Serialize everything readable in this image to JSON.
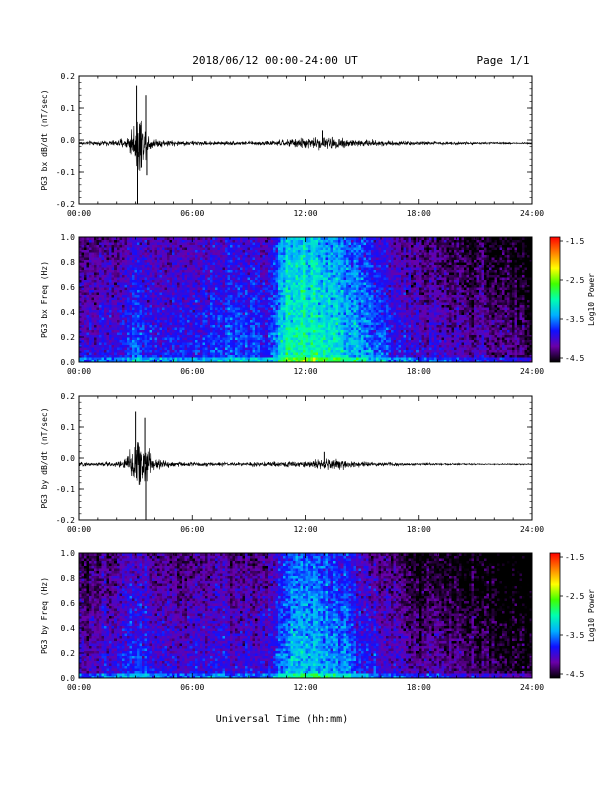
{
  "header": {
    "title": "2018/06/12  00:00-24:00 UT",
    "page": "Page 1/1"
  },
  "x_axis_title": "Universal Time (hh:mm)",
  "colors": {
    "trace": "#000000",
    "frame": "#000000",
    "background": "#ffffff"
  },
  "chart_data": [
    {
      "type": "line",
      "panel": "bx-timeseries",
      "ylabel": "PG3 bx dB/dt (nT/sec)",
      "ylim": [
        -0.2,
        0.2
      ],
      "yticks": [
        "0.2",
        "0.1",
        "0.0",
        "-0.1",
        "-0.2"
      ],
      "xlim": [
        0,
        24
      ],
      "xticks": [
        "00:00",
        "06:00",
        "12:00",
        "18:00",
        "24:00"
      ],
      "baseline": -0.01,
      "envelope": {
        "x_hours": [
          0,
          1,
          2,
          2.5,
          2.7,
          3.0,
          3.2,
          3.4,
          3.6,
          4.0,
          5.0,
          7.0,
          9.0,
          10.5,
          11.5,
          12.5,
          13.5,
          14.5,
          16.0,
          18.0,
          20.0,
          22.0,
          24.0
        ],
        "amplitude": [
          0.01,
          0.012,
          0.015,
          0.03,
          0.06,
          0.12,
          0.19,
          0.09,
          0.06,
          0.025,
          0.015,
          0.01,
          0.01,
          0.015,
          0.025,
          0.03,
          0.035,
          0.025,
          0.015,
          0.01,
          0.008,
          0.005,
          0.005
        ]
      },
      "notable_peaks": [
        {
          "x_hour": 3.05,
          "y": 0.17
        },
        {
          "x_hour": 3.1,
          "y": -0.2
        },
        {
          "x_hour": 3.55,
          "y": 0.14
        },
        {
          "x_hour": 3.6,
          "y": -0.11
        },
        {
          "x_hour": 12.9,
          "y": 0.03
        }
      ]
    },
    {
      "type": "heatmap",
      "panel": "bx-spectrogram",
      "ylabel": "PG3 bx Freq (Hz)",
      "ylim": [
        0.0,
        1.0
      ],
      "yticks": [
        "1.0",
        "0.8",
        "0.6",
        "0.4",
        "0.2",
        "0.0"
      ],
      "xlim": [
        0,
        24
      ],
      "xticks": [
        "00:00",
        "06:00",
        "12:00",
        "18:00",
        "24:00"
      ],
      "colorbar": {
        "label": "Log10 Power",
        "range": [
          -4.5,
          -1.5
        ],
        "ticks": [
          "-1.5",
          "-2.5",
          "-3.5",
          "-4.5"
        ],
        "colors": [
          "#000000",
          "#6a00a8",
          "#1010ff",
          "#00b0ff",
          "#00ffb0",
          "#40ff00",
          "#ffff00",
          "#ff8000",
          "#ff0000"
        ]
      },
      "activity_profile": {
        "x_hours": [
          0,
          2,
          2.8,
          3.3,
          4,
          6,
          8,
          10,
          10.5,
          11,
          12,
          13,
          14,
          15,
          16,
          17,
          18,
          20,
          22,
          24
        ],
        "mean_log10_power": [
          -3.9,
          -3.8,
          -3.6,
          -3.6,
          -3.8,
          -3.7,
          -3.6,
          -3.7,
          -3.3,
          -3.0,
          -2.9,
          -3.0,
          -3.2,
          -3.4,
          -3.6,
          -3.8,
          -3.9,
          -4.0,
          -4.1,
          -4.3
        ]
      }
    },
    {
      "type": "line",
      "panel": "by-timeseries",
      "ylabel": "PG3 by dB/dt (nT/sec)",
      "ylim": [
        -0.2,
        0.2
      ],
      "yticks": [
        "0.2",
        "0.1",
        "0.0",
        "-0.1",
        "-0.2"
      ],
      "xlim": [
        0,
        24
      ],
      "xticks": [
        "00:00",
        "06:00",
        "12:00",
        "18:00",
        "24:00"
      ],
      "baseline": -0.02,
      "envelope": {
        "x_hours": [
          0,
          1,
          2,
          2.5,
          2.7,
          3.0,
          3.2,
          3.4,
          3.6,
          4.0,
          5.0,
          7.0,
          9.0,
          10.5,
          11.5,
          12.5,
          13.5,
          14.5,
          16.0,
          18.0,
          20.0,
          22.0,
          24.0
        ],
        "amplitude": [
          0.01,
          0.012,
          0.015,
          0.04,
          0.08,
          0.14,
          0.16,
          0.13,
          0.11,
          0.03,
          0.015,
          0.01,
          0.01,
          0.013,
          0.02,
          0.025,
          0.03,
          0.02,
          0.01,
          0.006,
          0.004,
          0.003,
          0.003
        ]
      },
      "notable_peaks": [
        {
          "x_hour": 3.0,
          "y": 0.15
        },
        {
          "x_hour": 3.5,
          "y": 0.13
        },
        {
          "x_hour": 3.55,
          "y": -0.2
        },
        {
          "x_hour": 13.0,
          "y": 0.02
        }
      ]
    },
    {
      "type": "heatmap",
      "panel": "by-spectrogram",
      "ylabel": "PG3 by Freq (Hz)",
      "ylim": [
        0.0,
        1.0
      ],
      "yticks": [
        "1.0",
        "0.8",
        "0.6",
        "0.4",
        "0.2",
        "0.0"
      ],
      "xlim": [
        0,
        24
      ],
      "xticks": [
        "00:00",
        "06:00",
        "12:00",
        "18:00",
        "24:00"
      ],
      "colorbar": {
        "label": "Log10 Power",
        "range": [
          -4.5,
          -1.5
        ],
        "ticks": [
          "-1.5",
          "-2.5",
          "-3.5",
          "-4.5"
        ],
        "colors": [
          "#000000",
          "#6a00a8",
          "#1010ff",
          "#00b0ff",
          "#00ffb0",
          "#40ff00",
          "#ffff00",
          "#ff8000",
          "#ff0000"
        ]
      },
      "activity_profile": {
        "x_hours": [
          0,
          2,
          2.8,
          3.3,
          4,
          6,
          8,
          10,
          10.5,
          11,
          12,
          13,
          14,
          15,
          16,
          17,
          18,
          20,
          22,
          24
        ],
        "mean_log10_power": [
          -4.0,
          -3.9,
          -3.7,
          -3.7,
          -3.9,
          -3.9,
          -3.8,
          -3.9,
          -3.6,
          -3.3,
          -3.2,
          -3.3,
          -3.5,
          -3.7,
          -3.9,
          -4.0,
          -4.1,
          -4.2,
          -4.3,
          -4.4
        ]
      }
    }
  ]
}
